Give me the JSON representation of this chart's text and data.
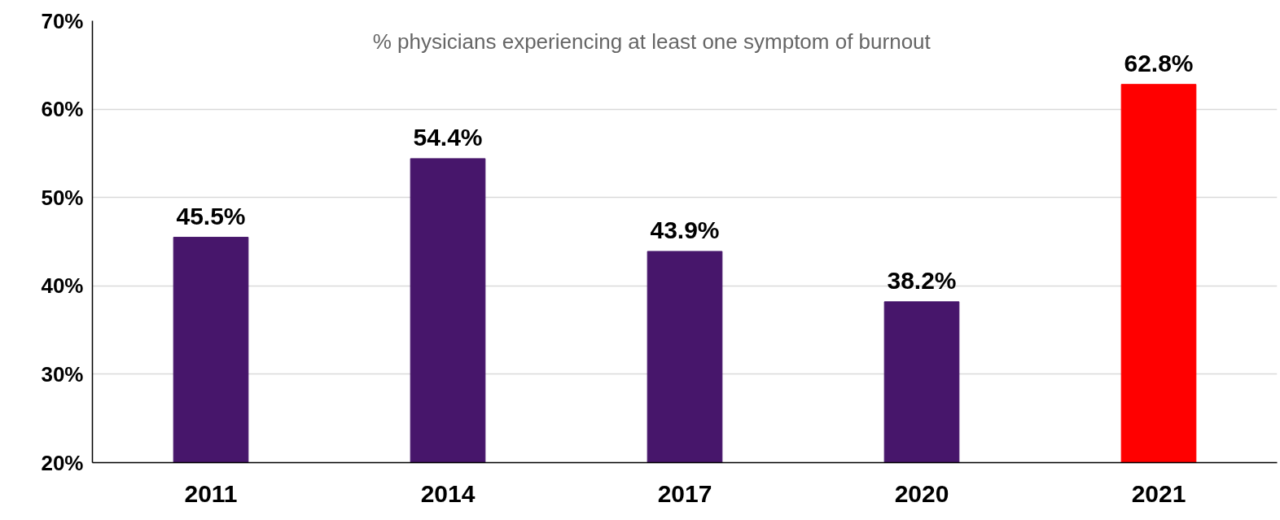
{
  "chart_data": {
    "type": "bar",
    "categories": [
      "2011",
      "2014",
      "2017",
      "2020",
      "2021"
    ],
    "values": [
      45.5,
      54.4,
      43.9,
      38.2,
      62.8
    ],
    "value_labels": [
      "45.5%",
      "54.4%",
      "43.9%",
      "38.2%",
      "62.8%"
    ],
    "colors": [
      "#47166b",
      "#47166b",
      "#47166b",
      "#47166b",
      "#ff0000"
    ],
    "ylim": [
      20,
      70
    ],
    "yticks": [
      {
        "value": 20,
        "label": "20%"
      },
      {
        "value": 30,
        "label": "30%"
      },
      {
        "value": 40,
        "label": "40%"
      },
      {
        "value": 50,
        "label": "50%"
      },
      {
        "value": 60,
        "label": "60%"
      },
      {
        "value": 70,
        "label": "70%"
      }
    ],
    "grid": "y",
    "annotations": [
      "% physicians experiencing at least one symptom of burnout"
    ]
  }
}
